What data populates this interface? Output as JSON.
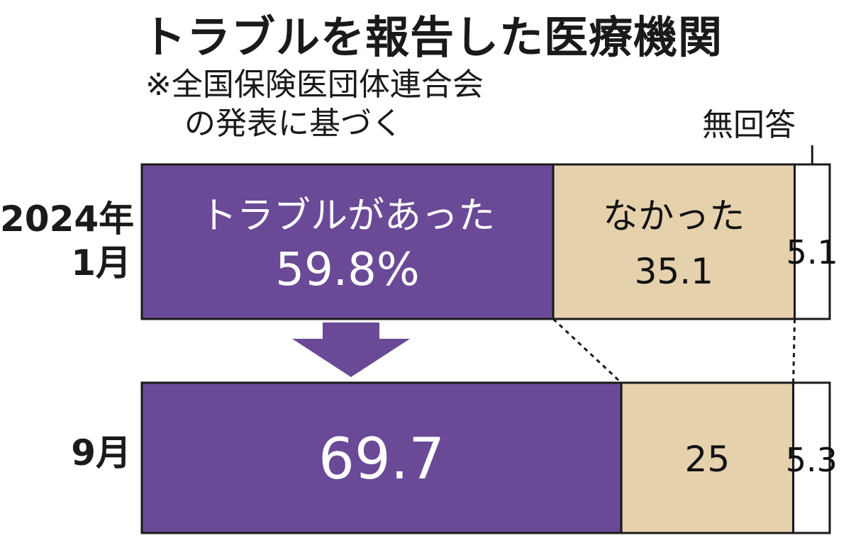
{
  "title": "トラブルを報告した医療機関",
  "note": {
    "line1": "※全国保険医団体連合会",
    "line2": "の発表に基づく"
  },
  "no_response_label": "無回答",
  "rows": [
    {
      "label_year": "2024年",
      "label_month": "1月"
    },
    {
      "label_month": "9月"
    }
  ],
  "colors": {
    "had_trouble": "#6a4a96",
    "no_trouble": "#e6d1ad",
    "no_response": "#ffffff"
  },
  "chart_data": {
    "type": "bar",
    "orientation": "horizontal",
    "stacked": true,
    "categories": [
      "2024年1月",
      "9月"
    ],
    "series": [
      {
        "name": "トラブルがあった",
        "values": [
          59.8,
          69.7
        ],
        "labels": [
          "59.8%",
          "69.7"
        ]
      },
      {
        "name": "なかった",
        "values": [
          35.1,
          25
        ],
        "labels": [
          "35.1",
          "25"
        ]
      },
      {
        "name": "無回答",
        "values": [
          5.1,
          5.3
        ],
        "labels": [
          "5.1",
          "5.3"
        ]
      }
    ],
    "xlim": [
      0,
      100
    ]
  }
}
